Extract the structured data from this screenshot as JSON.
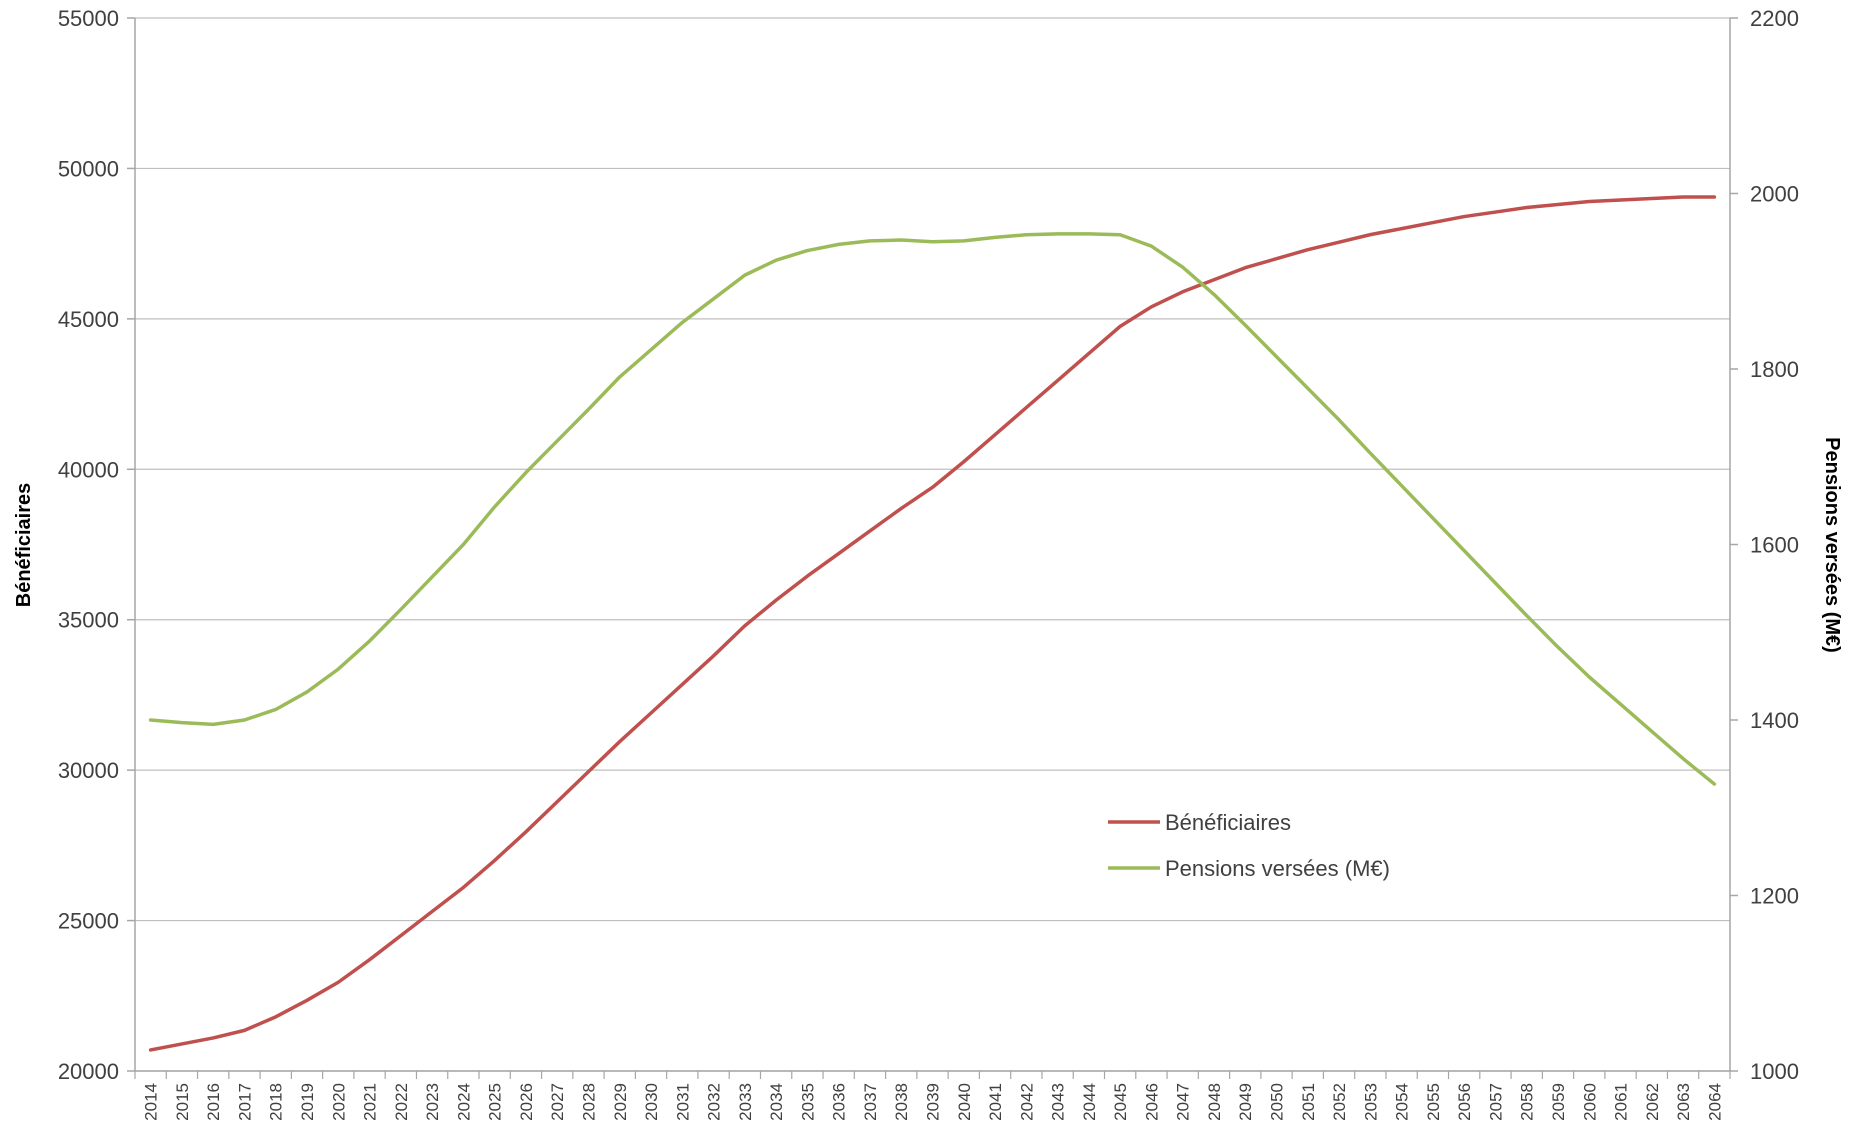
{
  "chart_data": {
    "type": "line",
    "x": [
      2014,
      2015,
      2016,
      2017,
      2018,
      2019,
      2020,
      2021,
      2022,
      2023,
      2024,
      2025,
      2026,
      2027,
      2028,
      2029,
      2030,
      2031,
      2032,
      2033,
      2034,
      2035,
      2036,
      2037,
      2038,
      2039,
      2040,
      2041,
      2042,
      2043,
      2044,
      2045,
      2046,
      2047,
      2048,
      2049,
      2050,
      2051,
      2052,
      2053,
      2054,
      2055,
      2056,
      2057,
      2058,
      2059,
      2060,
      2061,
      2062,
      2063,
      2064
    ],
    "x_tick_labels": [
      "2014",
      "2015",
      "2016",
      "2017",
      "2018",
      "2019",
      "2020",
      "2021",
      "2022",
      "2023",
      "2024",
      "2025",
      "2026",
      "2027",
      "2028",
      "2029",
      "2030",
      "2031",
      "2032",
      "2033",
      "2034",
      "2035",
      "2036",
      "2037",
      "2038",
      "2039",
      "2040",
      "2041",
      "2042",
      "2043",
      "2044",
      "2045",
      "2046",
      "2047",
      "2048",
      "2049",
      "2050",
      "2051",
      "2052",
      "2053",
      "2054",
      "2055",
      "2056",
      "2057",
      "2058",
      "2059",
      "2060",
      "2061",
      "2062",
      "2063",
      "2064"
    ],
    "series": [
      {
        "name": "Bénéficiaires",
        "axis": "left",
        "color": "#c0504d",
        "values": [
          20700,
          20900,
          21100,
          21350,
          21800,
          22350,
          22950,
          23700,
          24500,
          25300,
          26100,
          27000,
          27950,
          28950,
          29950,
          30950,
          31900,
          32850,
          33800,
          34800,
          35650,
          36450,
          37200,
          37950,
          38700,
          39400,
          40250,
          41150,
          42050,
          42950,
          43850,
          44750,
          45400,
          45900,
          46300,
          46700,
          47000,
          47300,
          47550,
          47800,
          48000,
          48200,
          48400,
          48550,
          48700,
          48800,
          48900,
          48950,
          49000,
          49050,
          49050
        ]
      },
      {
        "name": "Pensions versées (M€)",
        "axis": "right",
        "color": "#9bbb59",
        "values": [
          1400,
          1397,
          1395,
          1400,
          1412,
          1432,
          1458,
          1490,
          1526,
          1563,
          1600,
          1643,
          1682,
          1718,
          1754,
          1791,
          1822,
          1853,
          1880,
          1907,
          1924,
          1935,
          1942,
          1946,
          1947,
          1945,
          1946,
          1950,
          1953,
          1954,
          1954,
          1953,
          1940,
          1916,
          1885,
          1850,
          1814,
          1778,
          1742,
          1704,
          1667,
          1630,
          1593,
          1556,
          1519,
          1483,
          1449,
          1418,
          1387,
          1356,
          1327
        ]
      }
    ],
    "left_axis": {
      "title": "Bénéficiaires",
      "min": 20000,
      "max": 55000,
      "ticks": [
        20000,
        25000,
        30000,
        35000,
        40000,
        45000,
        50000,
        55000
      ],
      "tick_labels": [
        "20000",
        "25000",
        "30000",
        "35000",
        "40000",
        "45000",
        "50000",
        "55000"
      ]
    },
    "right_axis": {
      "title": "Pensions versées (M€)",
      "min": 1000,
      "max": 2200,
      "ticks": [
        1000,
        1200,
        1400,
        1600,
        1800,
        2000,
        2200
      ],
      "tick_labels": [
        "1000",
        "1200",
        "1400",
        "1600",
        "1800",
        "2000",
        "2200"
      ]
    },
    "grid": "horizontal",
    "legend_position": "center-right"
  }
}
